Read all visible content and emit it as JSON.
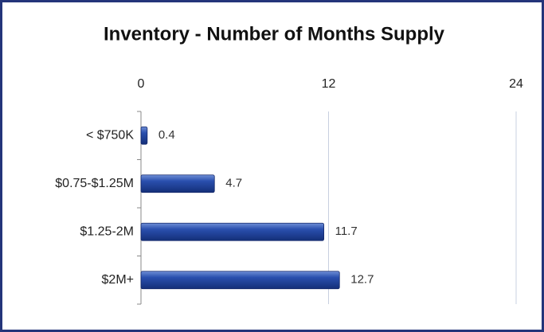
{
  "chart_data": {
    "type": "bar",
    "orientation": "horizontal",
    "title": "Inventory - Number of Months Supply",
    "categories": [
      "< $750K",
      "$0.75-$1.25M",
      "$1.25-2M",
      "$2M+"
    ],
    "values": [
      0.4,
      4.7,
      11.7,
      12.7
    ],
    "color": "#1f3f8f",
    "xlim": [
      0,
      24
    ],
    "xticks": [
      0,
      12,
      24
    ],
    "grid": true
  }
}
